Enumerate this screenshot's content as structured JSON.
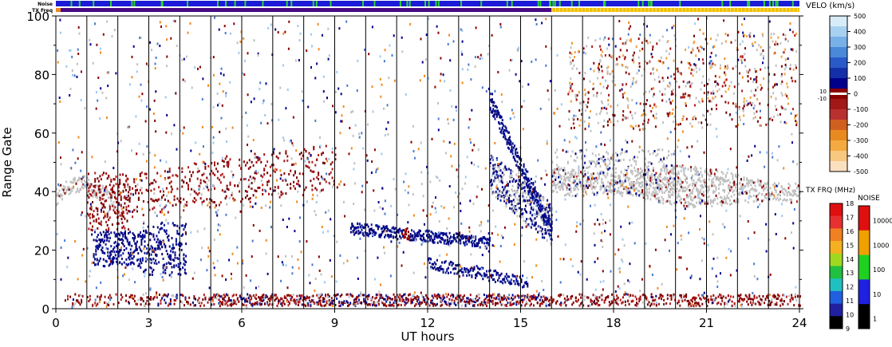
{
  "chart_data": {
    "type": "heatmap",
    "xlabel": "UT hours",
    "ylabel": "Range Gate",
    "xlim": [
      0,
      24
    ],
    "ylim": [
      0,
      100
    ],
    "x_ticks": [
      "0",
      "3",
      "6",
      "9",
      "12",
      "15",
      "18",
      "21",
      "24"
    ],
    "y_ticks": [
      "0",
      "20",
      "40",
      "60",
      "80",
      "100"
    ],
    "grid": "vertical lines every hour",
    "top_bars": {
      "noise_label": "Noise",
      "txfrq_label": "TX Freq",
      "noise_color": "#1b1bd8",
      "noise_spike_color": "#2bd42b",
      "txfrq_segments": [
        {
          "start": 0,
          "end": 16,
          "color": "#4a0a84"
        },
        {
          "start": 16,
          "end": 24,
          "color": "#f0c000"
        }
      ]
    },
    "velocity_scale": {
      "title": "VELO (km/s)",
      "labels": [
        "500",
        "400",
        "300",
        "200",
        "100",
        "0",
        "-100",
        "-200",
        "-300",
        "-400",
        "-500"
      ],
      "threshold_labels": [
        "10",
        "-10"
      ]
    },
    "txfrq_scale": {
      "title": "TX FRQ (MHz)",
      "labels": [
        "18",
        "17",
        "16",
        "15",
        "14",
        "13",
        "12",
        "11",
        "10",
        "9"
      ]
    },
    "noise_scale": {
      "title": "NOISE",
      "labels": [
        "10000",
        "1000",
        "100",
        "10",
        "1"
      ]
    },
    "features": [
      {
        "name": "ground scatter band",
        "x_range": [
          0,
          24
        ],
        "gate_range": [
          30,
          60
        ],
        "color": "#c0c0c0"
      },
      {
        "name": "negative velocity echoes",
        "x_range": [
          0,
          24
        ],
        "gate_range": [
          0,
          100
        ],
        "color": "#8b0000"
      },
      {
        "name": "positive velocity patch",
        "x_range": [
          1,
          4
        ],
        "gate_range": [
          12,
          32
        ],
        "color": "#00008b"
      },
      {
        "name": "positive velocity arc",
        "x_range": [
          9.5,
          16
        ],
        "gate_range": [
          8,
          72
        ],
        "color": "#00008b"
      }
    ]
  },
  "colors": {
    "ground_scatter": "#c0c0c0",
    "neg_dark": "#8b0000",
    "pos_dark": "#00008b",
    "frame": "#000000"
  }
}
